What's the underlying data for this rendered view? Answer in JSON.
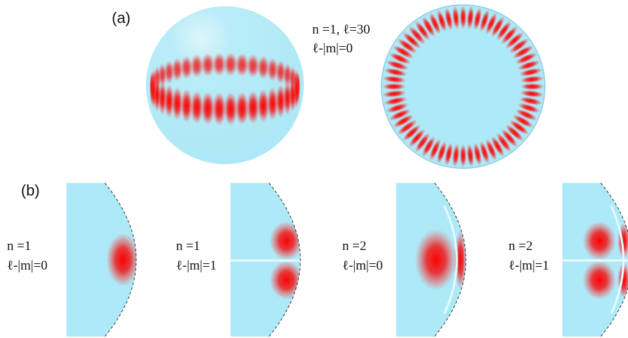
{
  "panel_a": {
    "label": "(a)",
    "mode_label": [
      "n =1, ℓ=30",
      "ℓ-|m|=0"
    ]
  },
  "panel_b": {
    "label": "(b)",
    "panels": [
      [
        "n =1",
        "ℓ-|m|=0"
      ],
      [
        "n =1",
        "ℓ-|m|=1"
      ],
      [
        "n =2",
        "ℓ-|m|=0"
      ],
      [
        "n =2",
        "ℓ-|m|=1"
      ]
    ]
  }
}
